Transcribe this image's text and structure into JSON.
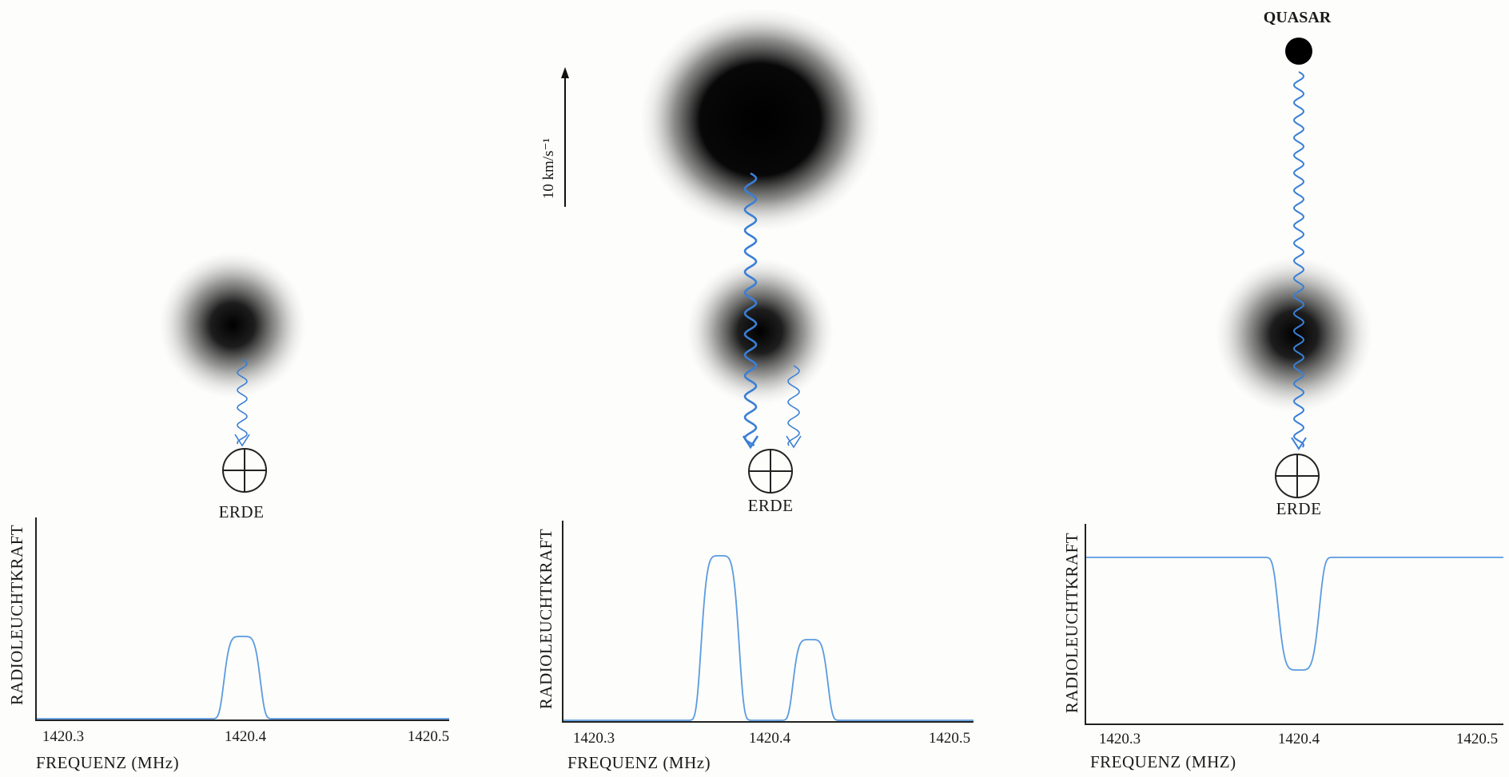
{
  "scale_label": "10 km/s⁻¹",
  "panels": [
    {
      "earth_label": "ERDE",
      "y_axis_label": "RADIOLEUCHTKRAFT",
      "x_axis_label": "FREQUENZ (MHz)",
      "x_tick_labels": [
        "1420.3",
        "1420.4",
        "1420.5"
      ]
    },
    {
      "earth_label": "ERDE",
      "y_axis_label": "RADIOLEUCHTKRAFT",
      "x_axis_label": "FREQUENZ (MHz)",
      "x_tick_labels": [
        "1420.3",
        "1420.4",
        "1420.5"
      ]
    },
    {
      "source_label": "QUASAR",
      "earth_label": "ERDE",
      "y_axis_label": "RADIOLEUCHTKRAFT",
      "x_axis_label": "FREQUENZ (MHZ)",
      "x_tick_labels": [
        "1420.3",
        "1420.4",
        "1420.5"
      ]
    }
  ]
}
